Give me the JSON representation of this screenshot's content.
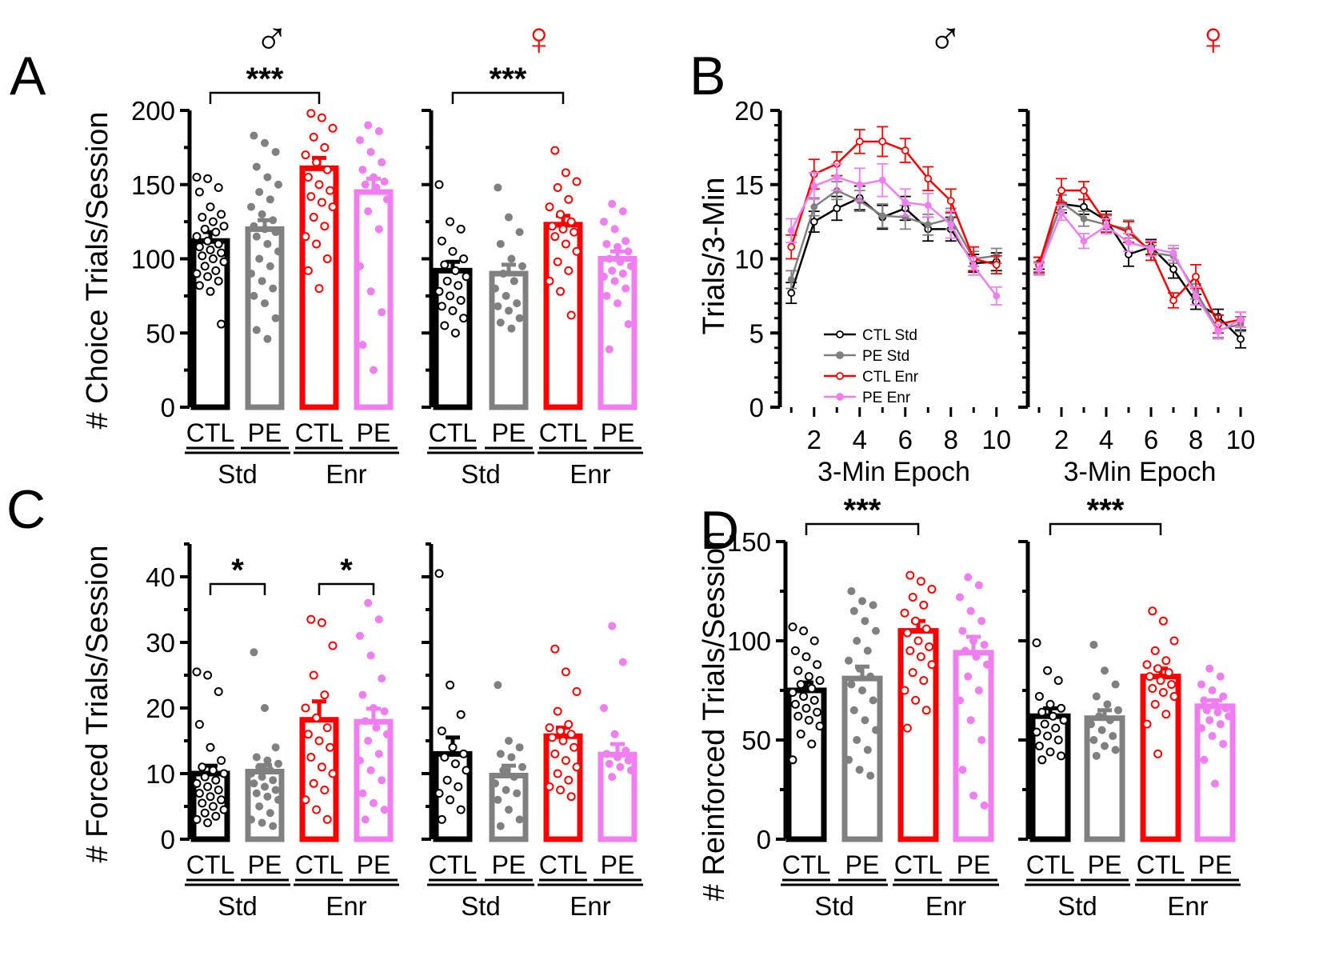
{
  "figure": {
    "panel_letters": [
      "A",
      "B",
      "C",
      "D"
    ],
    "sex_symbols": {
      "male": "♂",
      "female": "♀"
    }
  },
  "colors": {
    "CTL_Std": "#000000",
    "PE_Std": "#808080",
    "CTL_Enr": "#ff0000",
    "PE_Enr": "#f07ef0"
  },
  "chart_data": [
    {
      "id": "A-male",
      "panel": "A",
      "type": "bar",
      "sex": "male",
      "ylabel": "# Choice Trials/Session",
      "ylim": [
        0,
        200
      ],
      "yticks": [
        0,
        50,
        100,
        150,
        200
      ],
      "categories": [
        "CTL",
        "PE",
        "CTL",
        "PE"
      ],
      "groups": [
        "Std",
        "Enr"
      ],
      "values": [
        112,
        120,
        161,
        145
      ],
      "sem": [
        6,
        6,
        7,
        9
      ],
      "points": [
        [
          155,
          154,
          148,
          145,
          135,
          130,
          128,
          125,
          122,
          120,
          118,
          115,
          112,
          110,
          108,
          106,
          104,
          102,
          100,
          98,
          95,
          92,
          90,
          88,
          85,
          82,
          78,
          56
        ],
        [
          183,
          178,
          172,
          162,
          155,
          150,
          145,
          140,
          135,
          130,
          126,
          122,
          120,
          118,
          115,
          110,
          105,
          100,
          95,
          90,
          85,
          80,
          75,
          70,
          60,
          52,
          46
        ],
        [
          198,
          195,
          188,
          182,
          175,
          170,
          165,
          160,
          155,
          150,
          146,
          142,
          138,
          135,
          128,
          122,
          115,
          110,
          100,
          92,
          80
        ],
        [
          190,
          186,
          180,
          172,
          165,
          160,
          155,
          152,
          150,
          148,
          140,
          132,
          120,
          95,
          78,
          64,
          42,
          25
        ]
      ],
      "significance": [
        {
          "from": 0,
          "to": 2,
          "label": "***"
        }
      ]
    },
    {
      "id": "A-female",
      "panel": "A",
      "type": "bar",
      "sex": "female",
      "ylim": [
        0,
        200
      ],
      "yticks": [
        0,
        50,
        100,
        150,
        200
      ],
      "categories": [
        "CTL",
        "PE",
        "CTL",
        "PE"
      ],
      "groups": [
        "Std",
        "Enr"
      ],
      "values": [
        92,
        90,
        123,
        100
      ],
      "sem": [
        6,
        6,
        6,
        5
      ],
      "points": [
        [
          150,
          125,
          120,
          112,
          105,
          100,
          96,
          92,
          88,
          85,
          82,
          78,
          75,
          72,
          68,
          65,
          60,
          55,
          50
        ],
        [
          148,
          128,
          118,
          110,
          100,
          95,
          90,
          85,
          80,
          75,
          70,
          68,
          65,
          60,
          57,
          53
        ],
        [
          173,
          158,
          152,
          148,
          140,
          135,
          130,
          125,
          122,
          120,
          118,
          115,
          110,
          105,
          98,
          92,
          85,
          78,
          62
        ],
        [
          137,
          132,
          125,
          120,
          112,
          110,
          108,
          105,
          100,
          98,
          95,
          92,
          90,
          88,
          85,
          80,
          75,
          70,
          56,
          39
        ]
      ],
      "significance": [
        {
          "from": 0,
          "to": 2,
          "label": "***"
        }
      ]
    },
    {
      "id": "B-male",
      "panel": "B",
      "type": "line",
      "sex": "male",
      "ylabel": "Trials/3-Min",
      "xlabel": "3-Min Epoch",
      "ylim": [
        0,
        20
      ],
      "yticks": [
        0,
        5,
        10,
        15,
        20
      ],
      "xlim": [
        0.5,
        10.5
      ],
      "xticks": [
        2,
        4,
        6,
        8,
        10
      ],
      "x": [
        1,
        2,
        3,
        4,
        5,
        6,
        7,
        8,
        9,
        10
      ],
      "series": [
        {
          "name": "CTL Std",
          "values": [
            7.7,
            12.5,
            13.4,
            14.1,
            12.8,
            13.4,
            12.0,
            12.0,
            9.7,
            9.8
          ],
          "err": [
            0.7,
            0.7,
            0.8,
            0.8,
            0.8,
            0.8,
            0.8,
            0.8,
            0.6,
            0.6
          ]
        },
        {
          "name": "PE Std",
          "values": [
            8.6,
            13.5,
            14.6,
            13.9,
            12.9,
            12.8,
            12.3,
            12.7,
            10.0,
            10.2
          ],
          "err": [
            0.6,
            0.6,
            0.6,
            0.7,
            0.8,
            0.8,
            0.7,
            0.7,
            0.5,
            0.5
          ]
        },
        {
          "name": "CTL Enr",
          "values": [
            10.8,
            15.7,
            16.4,
            17.9,
            17.9,
            17.3,
            15.4,
            13.9,
            10.0,
            9.6
          ],
          "err": [
            0.8,
            1.0,
            0.8,
            0.8,
            1.0,
            0.8,
            0.8,
            0.8,
            0.8,
            0.6
          ]
        },
        {
          "name": "PE Enr",
          "values": [
            11.9,
            14.9,
            15.5,
            15.0,
            15.3,
            13.8,
            13.6,
            12.3,
            9.5,
            7.5
          ],
          "err": [
            0.8,
            0.9,
            0.9,
            1.1,
            1.1,
            0.9,
            0.8,
            0.9,
            0.6,
            0.6
          ]
        }
      ],
      "legend": [
        "CTL Std",
        "PE Std",
        "CTL Enr",
        "PE Enr"
      ]
    },
    {
      "id": "B-female",
      "panel": "B",
      "type": "line",
      "sex": "female",
      "xlabel": "3-Min Epoch",
      "ylim": [
        0,
        20
      ],
      "yticks": [
        0,
        5,
        10,
        15,
        20
      ],
      "xlim": [
        0.5,
        10.5
      ],
      "xticks": [
        2,
        4,
        6,
        8,
        10
      ],
      "x": [
        1,
        2,
        3,
        4,
        5,
        6,
        7,
        8,
        9,
        10
      ],
      "series": [
        {
          "name": "CTL Std",
          "values": [
            9.7,
            13.7,
            13.5,
            12.6,
            10.3,
            10.8,
            9.3,
            7.1,
            6.1,
            4.6
          ],
          "err": [
            0.4,
            0.6,
            0.5,
            0.6,
            0.8,
            0.5,
            0.6,
            0.5,
            0.5,
            0.6
          ]
        },
        {
          "name": "PE Std",
          "values": [
            9.4,
            13.8,
            12.7,
            12.3,
            12.0,
            10.4,
            10.2,
            7.8,
            5.2,
            5.6
          ],
          "err": [
            0.4,
            0.5,
            0.5,
            0.6,
            0.6,
            0.5,
            0.5,
            0.5,
            0.5,
            0.5
          ]
        },
        {
          "name": "CTL Enr",
          "values": [
            9.6,
            14.6,
            14.6,
            12.4,
            11.8,
            10.5,
            7.2,
            8.8,
            5.6,
            5.9
          ],
          "err": [
            0.5,
            0.8,
            0.6,
            0.6,
            0.7,
            0.6,
            0.5,
            0.8,
            0.6,
            0.5
          ]
        },
        {
          "name": "PE Enr",
          "values": [
            9.3,
            13.1,
            11.2,
            12.2,
            11.1,
            10.7,
            10.4,
            7.5,
            5.1,
            5.9
          ],
          "err": [
            0.4,
            0.5,
            0.5,
            0.5,
            0.6,
            0.5,
            0.5,
            0.6,
            0.5,
            0.5
          ]
        }
      ]
    },
    {
      "id": "C-male",
      "panel": "C",
      "type": "bar",
      "sex": "male",
      "ylabel": "# Forced Trials/Session",
      "ylim": [
        0,
        45
      ],
      "yticks": [
        0,
        10,
        20,
        30,
        40
      ],
      "categories": [
        "CTL",
        "PE",
        "CTL",
        "PE"
      ],
      "groups": [
        "Std",
        "Enr"
      ],
      "values": [
        10,
        10.3,
        18.2,
        17.9
      ],
      "sem": [
        1.2,
        1.0,
        2.8,
        2.0
      ],
      "points": [
        [
          25.5,
          25,
          22.5,
          17.5,
          14,
          12,
          11,
          10.5,
          10,
          9.5,
          9,
          8.5,
          8,
          7.5,
          7,
          6.5,
          6,
          5.5,
          5,
          4.5,
          4,
          3.5,
          3,
          2.5
        ],
        [
          28.5,
          20,
          14,
          12.5,
          12,
          11.5,
          11,
          10.5,
          10,
          9.5,
          9,
          8.5,
          8,
          7.5,
          7,
          6.5,
          6,
          5,
          4,
          3,
          2.5,
          2
        ],
        [
          33.5,
          33,
          29.5,
          25,
          22,
          20,
          18.5,
          17,
          16,
          15,
          14,
          12.5,
          11,
          10,
          8.5,
          7.5,
          6,
          4.5,
          3
        ],
        [
          36,
          33.5,
          31,
          28,
          24.5,
          22,
          20,
          19.5,
          18,
          17,
          16,
          15,
          13,
          12,
          10.5,
          9,
          7,
          5.5,
          4.5,
          3
        ]
      ],
      "significance": [
        {
          "from": 0,
          "to": 1,
          "label": "*"
        },
        {
          "from": 2,
          "to": 3,
          "label": "*"
        }
      ]
    },
    {
      "id": "C-female",
      "panel": "C",
      "type": "bar",
      "sex": "female",
      "ylim": [
        0,
        45
      ],
      "yticks": [
        0,
        10,
        20,
        30,
        40
      ],
      "categories": [
        "CTL",
        "PE",
        "CTL",
        "PE"
      ],
      "groups": [
        "Std",
        "Enr"
      ],
      "values": [
        13,
        9.7,
        15.7,
        12.9
      ],
      "sem": [
        2.5,
        1.5,
        1.3,
        1.6
      ],
      "points": [
        [
          40.5,
          23.5,
          19,
          16.5,
          14,
          13,
          12.5,
          11.5,
          10.5,
          9,
          8,
          7,
          6,
          4.5,
          3
        ],
        [
          23.5,
          15,
          14,
          13,
          12.5,
          11,
          10.5,
          9.5,
          8.5,
          7.5,
          7,
          6,
          4.5,
          3,
          2
        ],
        [
          29,
          25.5,
          22.5,
          19.5,
          17.5,
          17,
          16.5,
          16,
          15.5,
          15,
          14,
          13,
          12,
          11,
          10,
          9,
          8,
          7.5,
          6.5
        ],
        [
          32.5,
          27,
          20,
          16,
          13.5,
          13,
          12.5,
          12,
          11.5,
          11,
          10.5,
          9.5
        ]
      ]
    },
    {
      "id": "D-male",
      "panel": "D",
      "type": "bar",
      "sex": "male",
      "ylabel": "# Reinforced Trials/Session",
      "ylim": [
        0,
        150
      ],
      "yticks": [
        0,
        50,
        100,
        150
      ],
      "categories": [
        "CTL",
        "PE",
        "CTL",
        "PE"
      ],
      "groups": [
        "Std",
        "Enr"
      ],
      "values": [
        75,
        81,
        105,
        94
      ],
      "sem": [
        4,
        6,
        5,
        8
      ],
      "points": [
        [
          107,
          105,
          100,
          95,
          92,
          88,
          85,
          82,
          80,
          78,
          76,
          74,
          72,
          70,
          68,
          66,
          64,
          62,
          60,
          57,
          53,
          48,
          40
        ],
        [
          125,
          120,
          118,
          115,
          110,
          105,
          100,
          95,
          90,
          86,
          82,
          78,
          75,
          70,
          65,
          60,
          55,
          50,
          45,
          40,
          35,
          32
        ],
        [
          133,
          130,
          126,
          122,
          118,
          114,
          110,
          106,
          104,
          100,
          97,
          95,
          92,
          88,
          84,
          80,
          75,
          70,
          65,
          56
        ],
        [
          132,
          128,
          122,
          115,
          110,
          105,
          100,
          98,
          95,
          92,
          88,
          82,
          75,
          70,
          60,
          50,
          35,
          22,
          17
        ]
      ],
      "significance": [
        {
          "from": 0,
          "to": 2,
          "label": "***"
        }
      ]
    },
    {
      "id": "D-female",
      "panel": "D",
      "type": "bar",
      "sex": "female",
      "ylim": [
        0,
        150
      ],
      "yticks": [
        0,
        50,
        100,
        150
      ],
      "categories": [
        "CTL",
        "PE",
        "CTL",
        "PE"
      ],
      "groups": [
        "Std",
        "Enr"
      ],
      "values": [
        62,
        61,
        82,
        67
      ],
      "sem": [
        4,
        4,
        4,
        3
      ],
      "points": [
        [
          99,
          85,
          80,
          72,
          68,
          66,
          64,
          62,
          60,
          58,
          56,
          54,
          52,
          50,
          47,
          44,
          42,
          40
        ],
        [
          98,
          85,
          78,
          72,
          68,
          65,
          62,
          60,
          58,
          55,
          52,
          50,
          47,
          45,
          42
        ],
        [
          115,
          110,
          100,
          95,
          90,
          88,
          86,
          84,
          82,
          80,
          78,
          76,
          74,
          72,
          68,
          63,
          58,
          43
        ],
        [
          86,
          82,
          78,
          75,
          72,
          70,
          68,
          66,
          65,
          64,
          62,
          60,
          58,
          56,
          52,
          48,
          40,
          28
        ]
      ],
      "significance": [
        {
          "from": 0,
          "to": 2,
          "label": "***"
        }
      ]
    }
  ]
}
